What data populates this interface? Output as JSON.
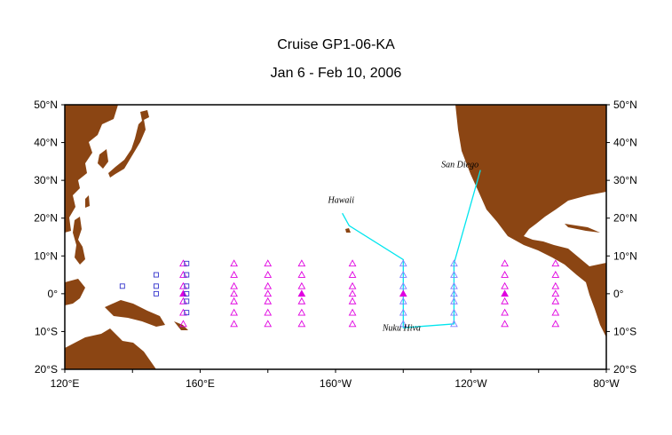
{
  "title": "Cruise GP1-06-KA",
  "subtitle": "Jan 6 - Feb 10, 2006",
  "colors": {
    "land": "#8B4513",
    "ocean": "#ffffff",
    "track": "#00E5EE",
    "array_triangle": "#E000E0",
    "visited_triangle": "#8080FF",
    "square": "#3333CC"
  },
  "map": {
    "lon_range": [
      120,
      280
    ],
    "lat_range": [
      -20,
      50
    ],
    "lat_labels": [
      "50°N",
      "40°N",
      "30°N",
      "20°N",
      "10°N",
      "0°",
      "10°S",
      "20°S"
    ],
    "lon_labels": [
      "120°E",
      "160°E",
      "160°W",
      "120°W",
      "80°W"
    ],
    "places": [
      {
        "name": "Hawaii",
        "lon": -157.5,
        "lat": 22.2
      },
      {
        "name": "San Diego",
        "lon": -117.2,
        "lat": 32.7
      },
      {
        "name": "Nuku Hiva",
        "lon": -140.1,
        "lat": -8.9
      }
    ]
  },
  "cruise_track": [
    [
      -158.0,
      21.3
    ],
    [
      -156.0,
      18.0
    ],
    [
      -140.0,
      9.0
    ],
    [
      -140.0,
      -9.0
    ],
    [
      -125.0,
      -8.0
    ],
    [
      -125.0,
      8.0
    ],
    [
      -117.2,
      32.7
    ]
  ],
  "buoys": {
    "triangles": {
      "lons": [
        155,
        170,
        180,
        -170,
        -155,
        -140,
        -125,
        -110,
        -95
      ],
      "lats": [
        8,
        5,
        2,
        0,
        -2,
        -5,
        -8
      ]
    },
    "filled": [
      [
        155,
        0
      ],
      [
        -170,
        0
      ],
      [
        -140,
        0
      ],
      [
        -110,
        0
      ]
    ],
    "visited_lons": [
      -140,
      -125
    ],
    "squares": [
      [
        137,
        2
      ],
      [
        147,
        5
      ],
      [
        147,
        2
      ],
      [
        147,
        0
      ],
      [
        156,
        8
      ],
      [
        156,
        5
      ],
      [
        156,
        2
      ],
      [
        156,
        0
      ],
      [
        156,
        -2
      ],
      [
        156,
        -5
      ]
    ]
  }
}
